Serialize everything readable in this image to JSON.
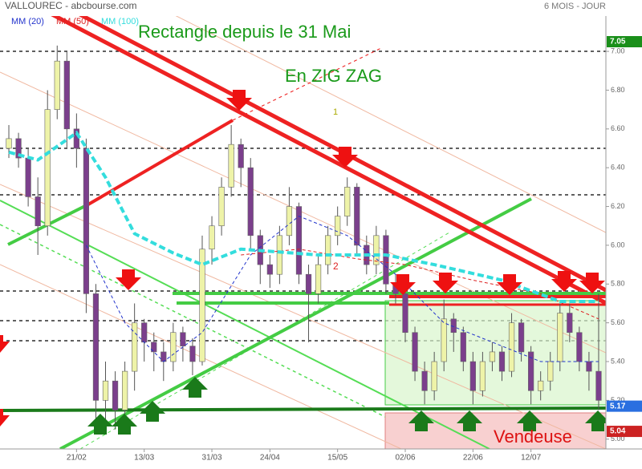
{
  "chart_data": {
    "type": "candlestick",
    "title": "VALLOUREC - abcbourse.com",
    "subtitle": "6 MOIS - JOUR",
    "annotations": [
      "Rectangle depuis le 31 Mai",
      "En ZIG ZAG",
      "Vendeuse",
      "1",
      "2"
    ],
    "xlim": [
      -0.5,
      61.5
    ],
    "xticks": [
      {
        "value": 7,
        "label": "21/02"
      },
      {
        "value": 14,
        "label": "13/03"
      },
      {
        "value": 21,
        "label": "31/03"
      },
      {
        "value": 27,
        "label": "24/04"
      },
      {
        "value": 34,
        "label": "15/05"
      },
      {
        "value": 41,
        "label": "02/06"
      },
      {
        "value": 48,
        "label": "22/06"
      },
      {
        "value": 54,
        "label": "12/07"
      }
    ],
    "ylim": [
      4.97,
      7.265
    ],
    "yticks": [
      {
        "value": 5,
        "label": "5.00"
      },
      {
        "value": 5.2,
        "label": "5.20"
      },
      {
        "value": 5.4,
        "label": "5.40"
      },
      {
        "value": 5.6,
        "label": "5.60"
      },
      {
        "value": 5.8,
        "label": "5.80"
      },
      {
        "value": 6,
        "label": "6.00"
      },
      {
        "value": 6.2,
        "label": "6.20"
      },
      {
        "value": 6.4,
        "label": "6.40"
      },
      {
        "value": 6.6,
        "label": "6.60"
      },
      {
        "value": 6.8,
        "label": "6.80"
      },
      {
        "value": 7,
        "label": "7.00"
      }
    ],
    "up_color": "#eef3a8",
    "down_color": "#7b3f8c",
    "open": [
      6.5,
      6.55,
      6.45,
      6.25,
      6.1,
      6.7,
      6.95,
      6.6,
      6.5,
      5.75,
      5.2,
      5.3,
      5.15,
      5.35,
      5.6,
      5.5,
      5.45,
      5.4,
      5.55,
      5.48,
      5.4,
      5.98,
      6.1,
      6.3,
      6.52,
      6.4,
      6.05,
      5.9,
      5.85,
      6.05,
      6.2,
      5.85,
      5.75,
      5.9,
      6.05,
      6.15,
      6.3,
      6.0,
      5.9,
      6.05,
      5.8,
      5.75,
      5.55,
      5.35,
      5.25,
      5.4,
      5.62,
      5.55,
      5.4,
      5.25,
      5.4,
      5.45,
      5.35,
      5.6,
      5.45,
      5.25,
      5.3,
      5.4,
      5.65,
      5.55,
      5.4,
      5.35
    ],
    "high": [
      6.62,
      6.58,
      6.5,
      6.35,
      6.8,
      7.03,
      7.0,
      6.68,
      6.55,
      5.8,
      5.4,
      5.35,
      5.4,
      5.7,
      5.62,
      5.55,
      5.5,
      5.6,
      5.58,
      5.52,
      6.05,
      6.15,
      6.35,
      6.62,
      6.55,
      6.45,
      6.08,
      5.95,
      6.1,
      6.3,
      6.22,
      5.9,
      5.95,
      6.1,
      6.2,
      6.35,
      6.32,
      6.05,
      6.1,
      6.08,
      5.85,
      5.78,
      5.58,
      5.4,
      5.45,
      5.72,
      5.65,
      5.58,
      5.45,
      5.45,
      5.5,
      5.48,
      5.65,
      5.62,
      5.48,
      5.35,
      5.45,
      5.7,
      5.7,
      5.58,
      5.45,
      5.75
    ],
    "low": [
      6.45,
      6.4,
      6.2,
      5.95,
      6.05,
      6.65,
      6.5,
      6.4,
      5.65,
      5.08,
      5.1,
      5.05,
      5.1,
      5.25,
      5.4,
      5.35,
      5.3,
      5.35,
      5.4,
      5.33,
      5.38,
      5.9,
      6.05,
      6.25,
      6.3,
      5.98,
      5.8,
      5.78,
      5.8,
      6.0,
      5.8,
      5.5,
      5.7,
      5.85,
      6.0,
      6.1,
      5.95,
      5.85,
      5.85,
      5.75,
      5.7,
      5.5,
      5.3,
      5.18,
      5.2,
      5.35,
      5.45,
      5.35,
      5.18,
      5.22,
      5.35,
      5.3,
      5.32,
      5.4,
      5.18,
      5.2,
      5.25,
      5.35,
      5.5,
      5.35,
      5.25,
      5.15
    ],
    "close": [
      6.55,
      6.45,
      6.25,
      6.1,
      6.7,
      6.95,
      6.6,
      6.5,
      5.75,
      5.2,
      5.3,
      5.15,
      5.35,
      5.6,
      5.5,
      5.45,
      5.4,
      5.55,
      5.48,
      5.4,
      5.98,
      6.1,
      6.3,
      6.52,
      6.4,
      6.05,
      5.9,
      5.85,
      6.05,
      6.2,
      5.85,
      5.75,
      5.9,
      6.05,
      6.15,
      6.3,
      6.0,
      5.9,
      6.05,
      5.8,
      5.75,
      5.55,
      5.35,
      5.25,
      5.4,
      5.62,
      5.55,
      5.4,
      5.25,
      5.4,
      5.45,
      5.35,
      5.6,
      5.45,
      5.25,
      5.3,
      5.4,
      5.65,
      5.55,
      5.4,
      5.35,
      5.2
    ],
    "series": [
      {
        "name": "MM (20)",
        "color": "#2233cc",
        "x": [
          8,
          12,
          16,
          20,
          25,
          30,
          35,
          40,
          45,
          50,
          55,
          61
        ],
        "values": [
          6.0,
          5.6,
          5.4,
          5.55,
          5.95,
          6.15,
          6.05,
          5.85,
          5.6,
          5.5,
          5.4,
          5.4
        ]
      },
      {
        "name": "MM (50)",
        "color": "#dd2222",
        "x": [
          24,
          30,
          36,
          41,
          48,
          55,
          61
        ],
        "values": [
          5.95,
          5.98,
          5.93,
          5.9,
          5.82,
          5.75,
          5.62
        ]
      },
      {
        "name": "MM (100)",
        "color": "#33dddd",
        "x": [
          0,
          3,
          7,
          10,
          13,
          17,
          20,
          24,
          32,
          39,
          44,
          51,
          57,
          61
        ],
        "values": [
          6.48,
          6.44,
          6.58,
          6.35,
          6.06,
          5.96,
          5.9,
          5.98,
          5.95,
          5.95,
          5.9,
          5.82,
          5.71,
          5.71
        ]
      }
    ],
    "price_markers": [
      {
        "value": 7.05,
        "color": "#1a8f1a"
      },
      {
        "value": 5.17,
        "color": "#2a6fe0"
      },
      {
        "value": 5.04,
        "color": "#cc2222"
      }
    ]
  }
}
